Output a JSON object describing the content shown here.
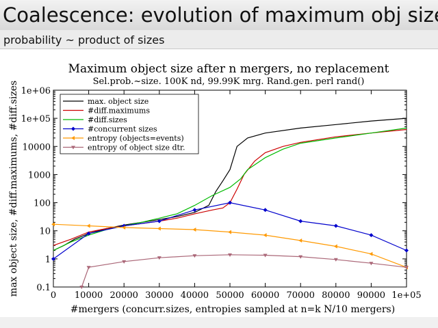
{
  "slide": {
    "title": "Coalescence: evolution of maximum obj size",
    "subtitle": "probability ~ product of sizes"
  },
  "chart_data": {
    "type": "line",
    "title": "Maximum object size after n mergers, no replacement",
    "subtitle": "Sel.prob.~size. 100K nd, 99.99K mrg. Rand.gen. perl rand()",
    "xlabel": "#mergers (concurr.sizes, entropies sampled at n=k N/10 mergers)",
    "ylabel": "max object size, #diff.maximums, #diff.sizes",
    "xlim": [
      0,
      100000
    ],
    "ylim": [
      0.1,
      1000000
    ],
    "yscale": "log",
    "x_tick_labels": [
      "0",
      "10000",
      "20000",
      "30000",
      "40000",
      "50000",
      "60000",
      "70000",
      "80000",
      "90000",
      "1e+05"
    ],
    "y_tick_labels": [
      "0.1",
      "1",
      "10",
      "100",
      "1000",
      "10000",
      "1e+05",
      "1e+06"
    ],
    "legend_position": "top-left",
    "series": [
      {
        "name": "max. object size",
        "color": "#000000",
        "marker": "none",
        "points": [
          [
            0,
            2
          ],
          [
            3000,
            3
          ],
          [
            6000,
            5
          ],
          [
            10000,
            8
          ],
          [
            15000,
            12
          ],
          [
            20000,
            16
          ],
          [
            25000,
            20
          ],
          [
            30000,
            25
          ],
          [
            35000,
            32
          ],
          [
            40000,
            45
          ],
          [
            44000,
            80
          ],
          [
            46000,
            250
          ],
          [
            48000,
            600
          ],
          [
            50000,
            1500
          ],
          [
            52000,
            10000
          ],
          [
            55000,
            20000
          ],
          [
            60000,
            30000
          ],
          [
            70000,
            45000
          ],
          [
            80000,
            60000
          ],
          [
            90000,
            80000
          ],
          [
            100000,
            100000
          ]
        ]
      },
      {
        "name": "#diff.maximums",
        "color": "#cc0000",
        "marker": "none",
        "points": [
          [
            0,
            3
          ],
          [
            5000,
            5
          ],
          [
            10000,
            9
          ],
          [
            15000,
            12
          ],
          [
            20000,
            15
          ],
          [
            25000,
            18
          ],
          [
            30000,
            22
          ],
          [
            35000,
            28
          ],
          [
            40000,
            40
          ],
          [
            45000,
            55
          ],
          [
            48000,
            65
          ],
          [
            50000,
            100
          ],
          [
            52000,
            300
          ],
          [
            54000,
            1000
          ],
          [
            57000,
            3000
          ],
          [
            60000,
            6000
          ],
          [
            65000,
            10000
          ],
          [
            70000,
            14000
          ],
          [
            80000,
            22000
          ],
          [
            90000,
            30000
          ],
          [
            100000,
            40000
          ]
        ]
      },
      {
        "name": "#diff.sizes",
        "color": "#00bb00",
        "marker": "none",
        "points": [
          [
            0,
            2
          ],
          [
            5000,
            4
          ],
          [
            10000,
            7
          ],
          [
            15000,
            11
          ],
          [
            20000,
            15
          ],
          [
            25000,
            20
          ],
          [
            30000,
            28
          ],
          [
            35000,
            40
          ],
          [
            40000,
            80
          ],
          [
            45000,
            180
          ],
          [
            50000,
            350
          ],
          [
            53000,
            700
          ],
          [
            55000,
            1500
          ],
          [
            60000,
            4000
          ],
          [
            65000,
            8000
          ],
          [
            70000,
            13000
          ],
          [
            80000,
            20000
          ],
          [
            90000,
            30000
          ],
          [
            100000,
            45000
          ]
        ]
      },
      {
        "name": "#concurrent sizes",
        "color": "#0000cc",
        "marker": "diamond",
        "points": [
          [
            0,
            1
          ],
          [
            10000,
            8
          ],
          [
            20000,
            15
          ],
          [
            30000,
            22
          ],
          [
            40000,
            55
          ],
          [
            50000,
            100
          ],
          [
            60000,
            55
          ],
          [
            70000,
            22
          ],
          [
            80000,
            15
          ],
          [
            90000,
            7
          ],
          [
            100000,
            2
          ]
        ]
      },
      {
        "name": "entropy (objects=events)",
        "color": "#ff9900",
        "marker": "triangle-left",
        "points": [
          [
            0,
            17
          ],
          [
            10000,
            15
          ],
          [
            20000,
            13
          ],
          [
            30000,
            12
          ],
          [
            40000,
            11
          ],
          [
            50000,
            9
          ],
          [
            60000,
            7
          ],
          [
            70000,
            4.5
          ],
          [
            80000,
            2.8
          ],
          [
            90000,
            1.5
          ],
          [
            100000,
            0.5
          ]
        ]
      },
      {
        "name": "entropy of  object size dtr.",
        "color": "#aa6677",
        "marker": "triangle-down",
        "points": [
          [
            8000,
            0.1
          ],
          [
            10000,
            0.5
          ],
          [
            20000,
            0.8
          ],
          [
            30000,
            1.1
          ],
          [
            40000,
            1.3
          ],
          [
            50000,
            1.4
          ],
          [
            60000,
            1.35
          ],
          [
            70000,
            1.2
          ],
          [
            80000,
            0.95
          ],
          [
            90000,
            0.7
          ],
          [
            100000,
            0.5
          ]
        ]
      }
    ]
  }
}
